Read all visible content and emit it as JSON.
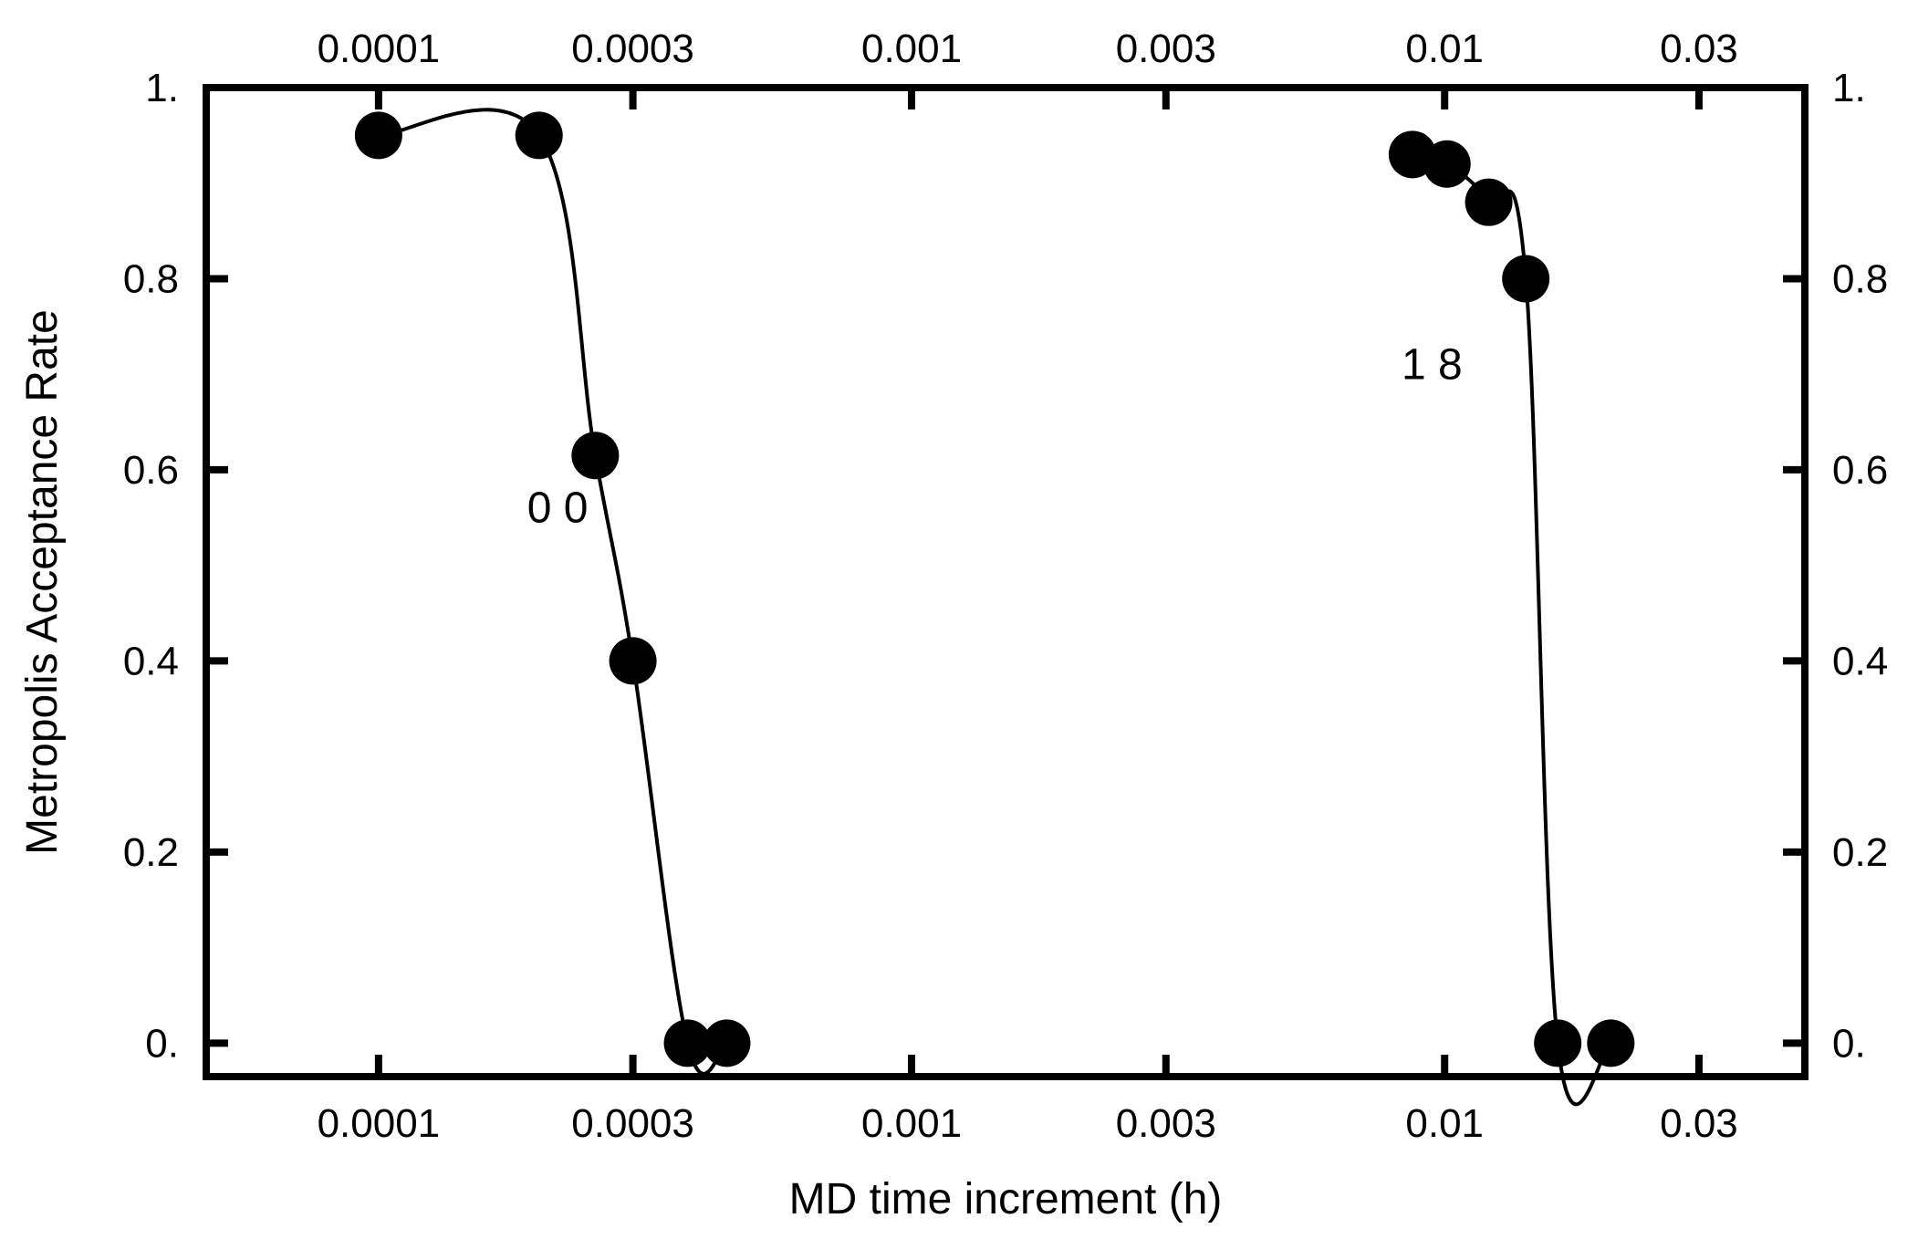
{
  "chart_data": {
    "type": "line",
    "xlabel": "MD time increment (h)",
    "ylabel": "Metropolis Acceptance Rate",
    "x_scale": "log",
    "xlim": [
      4.75e-05,
      0.0474
    ],
    "ylim": [
      -0.035,
      1.0
    ],
    "x_ticks": [
      0.0001,
      0.0003,
      0.001,
      0.003,
      0.01,
      0.03
    ],
    "x_tick_labels": [
      "0.0001",
      "0.0003",
      "0.001",
      "0.003",
      "0.01",
      "0.03"
    ],
    "y_ticks": [
      0,
      0.2,
      0.4,
      0.6,
      0.8,
      1.0
    ],
    "y_tick_labels": [
      "0.",
      "0.2",
      "0.4",
      "0.6",
      "0.8",
      "1."
    ],
    "grid": false,
    "series": [
      {
        "points": [
          [
            0.0001,
            0.95
          ],
          [
            0.0002,
            0.95
          ],
          [
            0.000255,
            0.615
          ],
          [
            0.0003,
            0.4
          ],
          [
            0.00038,
            0.0
          ],
          [
            0.00045,
            0.0
          ]
        ]
      },
      {
        "points": [
          [
            0.0087,
            0.93
          ],
          [
            0.0101,
            0.92
          ],
          [
            0.0121,
            0.88
          ],
          [
            0.0142,
            0.8
          ],
          [
            0.0163,
            0.0
          ],
          [
            0.0205,
            0.0
          ]
        ]
      }
    ],
    "annotations": [
      {
        "text": "0 0",
        "x": 0.00019,
        "y": 0.545
      },
      {
        "text": "1 8",
        "x": 0.0083,
        "y": 0.695
      }
    ]
  }
}
